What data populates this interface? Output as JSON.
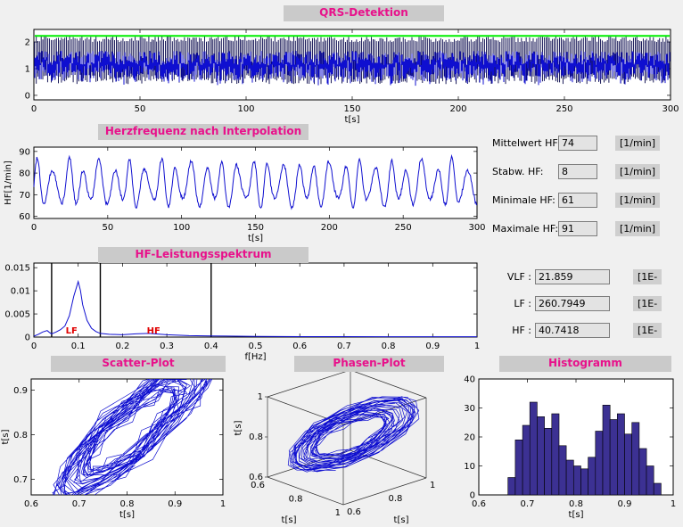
{
  "titles": {
    "qrs": "QRS-Detektion",
    "hr": "Herzfrequenz nach Interpolation",
    "spectrum": "HF-Leistungsspektrum",
    "scatter": "Scatter-Plot",
    "phase": "Phasen-Plot",
    "histogram": "Histogramm"
  },
  "stats_hr": {
    "rows": [
      {
        "label": "Mittelwert HF:",
        "value": "74",
        "unit": "[1/min]"
      },
      {
        "label": "Stabw. HF:",
        "value": "8",
        "unit": "[1/min]"
      },
      {
        "label": "Minimale HF:",
        "value": "61",
        "unit": "[1/min]"
      },
      {
        "label": "Maximale HF:",
        "value": "91",
        "unit": "[1/min]"
      }
    ]
  },
  "stats_spectrum": {
    "rows": [
      {
        "label": "VLF :",
        "value": "21.859",
        "unit": "[1E-"
      },
      {
        "label": "LF :",
        "value": "260.7949",
        "unit": "[1E-"
      },
      {
        "label": "HF :",
        "value": "40.7418",
        "unit": "[1E-"
      }
    ]
  },
  "colors": {
    "background": "#f0f0f0",
    "title_bar": "#cacaca",
    "title_text": "#e8118b",
    "plot_bg": "#ffffff",
    "signal_blue": "#0f0fd0",
    "threshold_green": "#00ef00",
    "histogram_fill": "#3c3193",
    "band_label_red": "#e00000",
    "box_bg": "#e3e3e3",
    "unit_bg": "#cfcfcf"
  },
  "chart_data": [
    {
      "id": "qrs",
      "type": "line",
      "title": "QRS-Detektion",
      "xlabel": "t[s]",
      "xlim": [
        0,
        300
      ],
      "xticks": [
        0,
        50,
        100,
        150,
        200,
        250,
        300
      ],
      "ylim": [
        -0.17,
        2.47
      ],
      "yticks": [
        0,
        1,
        2
      ],
      "threshold": {
        "y": 2.23,
        "color": "#00ef00"
      },
      "signal_description": "Dense ECG trace over 300 s: blue noise band around amplitude 1.0-1.7 with QRS spikes roughly every 0.8 s reaching ~2.2, horizontal green detection-threshold line near the top",
      "color": "#0f0fd0"
    },
    {
      "id": "hr",
      "type": "line",
      "title": "Herzfrequenz nach Interpolation",
      "xlabel": "t[s]",
      "ylabel": "HF[1/min]",
      "xlim": [
        0,
        300
      ],
      "xticks": [
        0,
        50,
        100,
        150,
        200,
        250,
        300
      ],
      "ylim": [
        59,
        92
      ],
      "yticks": [
        60,
        70,
        80,
        90
      ],
      "series": {
        "name": "HF",
        "mean": 74,
        "std": 8,
        "min": 61,
        "max": 91,
        "oscillation_period_s": 10.4
      },
      "color": "#0f0fd0"
    },
    {
      "id": "spectrum",
      "type": "line",
      "title": "HF-Leistungsspektrum",
      "xlabel": "f[Hz]",
      "xlim": [
        0,
        1
      ],
      "xticks": [
        0,
        0.1,
        0.2,
        0.3,
        0.4,
        0.5,
        0.6,
        0.7,
        0.8,
        0.9,
        1
      ],
      "ylim": [
        0,
        0.016
      ],
      "yticks": [
        0,
        0.005,
        0.01,
        0.015
      ],
      "points": [
        [
          0,
          0.0002
        ],
        [
          0.01,
          0.0006
        ],
        [
          0.02,
          0.0011
        ],
        [
          0.03,
          0.0014
        ],
        [
          0.035,
          0.001
        ],
        [
          0.04,
          0.0007
        ],
        [
          0.05,
          0.0011
        ],
        [
          0.06,
          0.0016
        ],
        [
          0.07,
          0.0024
        ],
        [
          0.08,
          0.0046
        ],
        [
          0.09,
          0.0088
        ],
        [
          0.1,
          0.012
        ],
        [
          0.105,
          0.0101
        ],
        [
          0.11,
          0.007
        ],
        [
          0.12,
          0.0036
        ],
        [
          0.13,
          0.0019
        ],
        [
          0.14,
          0.0012
        ],
        [
          0.15,
          0.0008
        ],
        [
          0.17,
          0.0006
        ],
        [
          0.2,
          0.0005
        ],
        [
          0.23,
          0.0007
        ],
        [
          0.26,
          0.0008
        ],
        [
          0.3,
          0.0005
        ],
        [
          0.35,
          0.0003
        ],
        [
          0.4,
          0.00025
        ],
        [
          0.5,
          0.00015
        ],
        [
          0.6,
          0.0001
        ],
        [
          0.7,
          0.0001
        ],
        [
          0.8,
          8e-05
        ],
        [
          0.9,
          8e-05
        ],
        [
          1,
          8e-05
        ]
      ],
      "band_lines": [
        0.04,
        0.15,
        0.4
      ],
      "band_labels": [
        {
          "text": "LF",
          "f": 0.085
        },
        {
          "text": "HF",
          "f": 0.27
        }
      ]
    },
    {
      "id": "scatter",
      "type": "scatter",
      "title": "Scatter-Plot",
      "xlabel": "t[s]",
      "ylabel": "t[s]",
      "xlim": [
        0.6,
        1
      ],
      "xticks": [
        0.6,
        0.7,
        0.8,
        0.9,
        1
      ],
      "ylim": [
        0.665,
        0.925
      ],
      "yticks": [
        0.7,
        0.8,
        0.9
      ],
      "description": "Successive RR intervals RR(n) vs RR(n+1) in seconds, drawn as a connected blue trace forming a dense diagonal tangle between about 0.65 and 0.98 s"
    },
    {
      "id": "phase",
      "type": "scatter3d",
      "title": "Phasen-Plot",
      "xlabel": "t[s]",
      "ylabel": "t[s]",
      "zlabel": "t[s]",
      "xlim": [
        0.6,
        1
      ],
      "ylim": [
        0.6,
        1
      ],
      "zlim": [
        0.6,
        1
      ],
      "xticks": [
        0.6,
        0.8,
        1
      ],
      "yticks": [
        0.6,
        0.8,
        1
      ],
      "zticks": [
        0.6,
        0.8,
        1
      ],
      "description": "3D phase-space trajectory of RR intervals (RR(n), RR(n+1), RR(n+2)) as a blue tangle inside a wireframe axes box"
    },
    {
      "id": "histogram",
      "type": "bar",
      "title": "Histogramm",
      "xlabel": "t[s]",
      "xlim": [
        0.6,
        1
      ],
      "xticks": [
        0.6,
        0.7,
        0.8,
        0.9,
        1
      ],
      "ylim": [
        0,
        40
      ],
      "yticks": [
        0,
        10,
        20,
        30,
        40
      ],
      "bin_start": 0.66,
      "bin_width": 0.015,
      "values": [
        6,
        19,
        24,
        32,
        27,
        23,
        28,
        17,
        12,
        10,
        9,
        13,
        22,
        31,
        26,
        28,
        21,
        25,
        16,
        10,
        4
      ],
      "bar_color": "#3c3193"
    }
  ]
}
